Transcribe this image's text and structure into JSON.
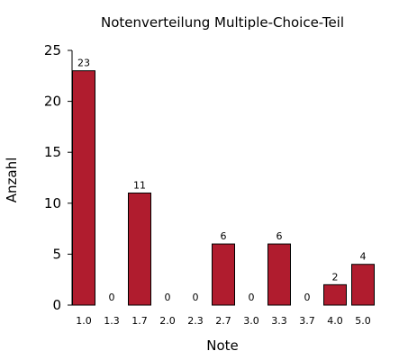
{
  "chart_data": {
    "type": "bar",
    "title": "Notenverteilung Multiple-Choice-Teil",
    "xlabel": "Note",
    "ylabel": "Anzahl",
    "categories": [
      "1.0",
      "1.3",
      "1.7",
      "2.0",
      "2.3",
      "2.7",
      "3.0",
      "3.3",
      "3.7",
      "4.0",
      "5.0"
    ],
    "values": [
      23,
      0,
      11,
      0,
      0,
      6,
      0,
      6,
      0,
      2,
      4
    ],
    "data_labels": [
      "23",
      "0",
      "11",
      "0",
      "0",
      "6",
      "0",
      "6",
      "0",
      "2",
      "4"
    ],
    "ylim": [
      0,
      25
    ],
    "yticks": [
      "0",
      "5",
      "10",
      "15",
      "20",
      "25"
    ],
    "grid": false,
    "legend": "none",
    "bar_color": "#b01c2e",
    "bar_edge_color": "#000000"
  }
}
